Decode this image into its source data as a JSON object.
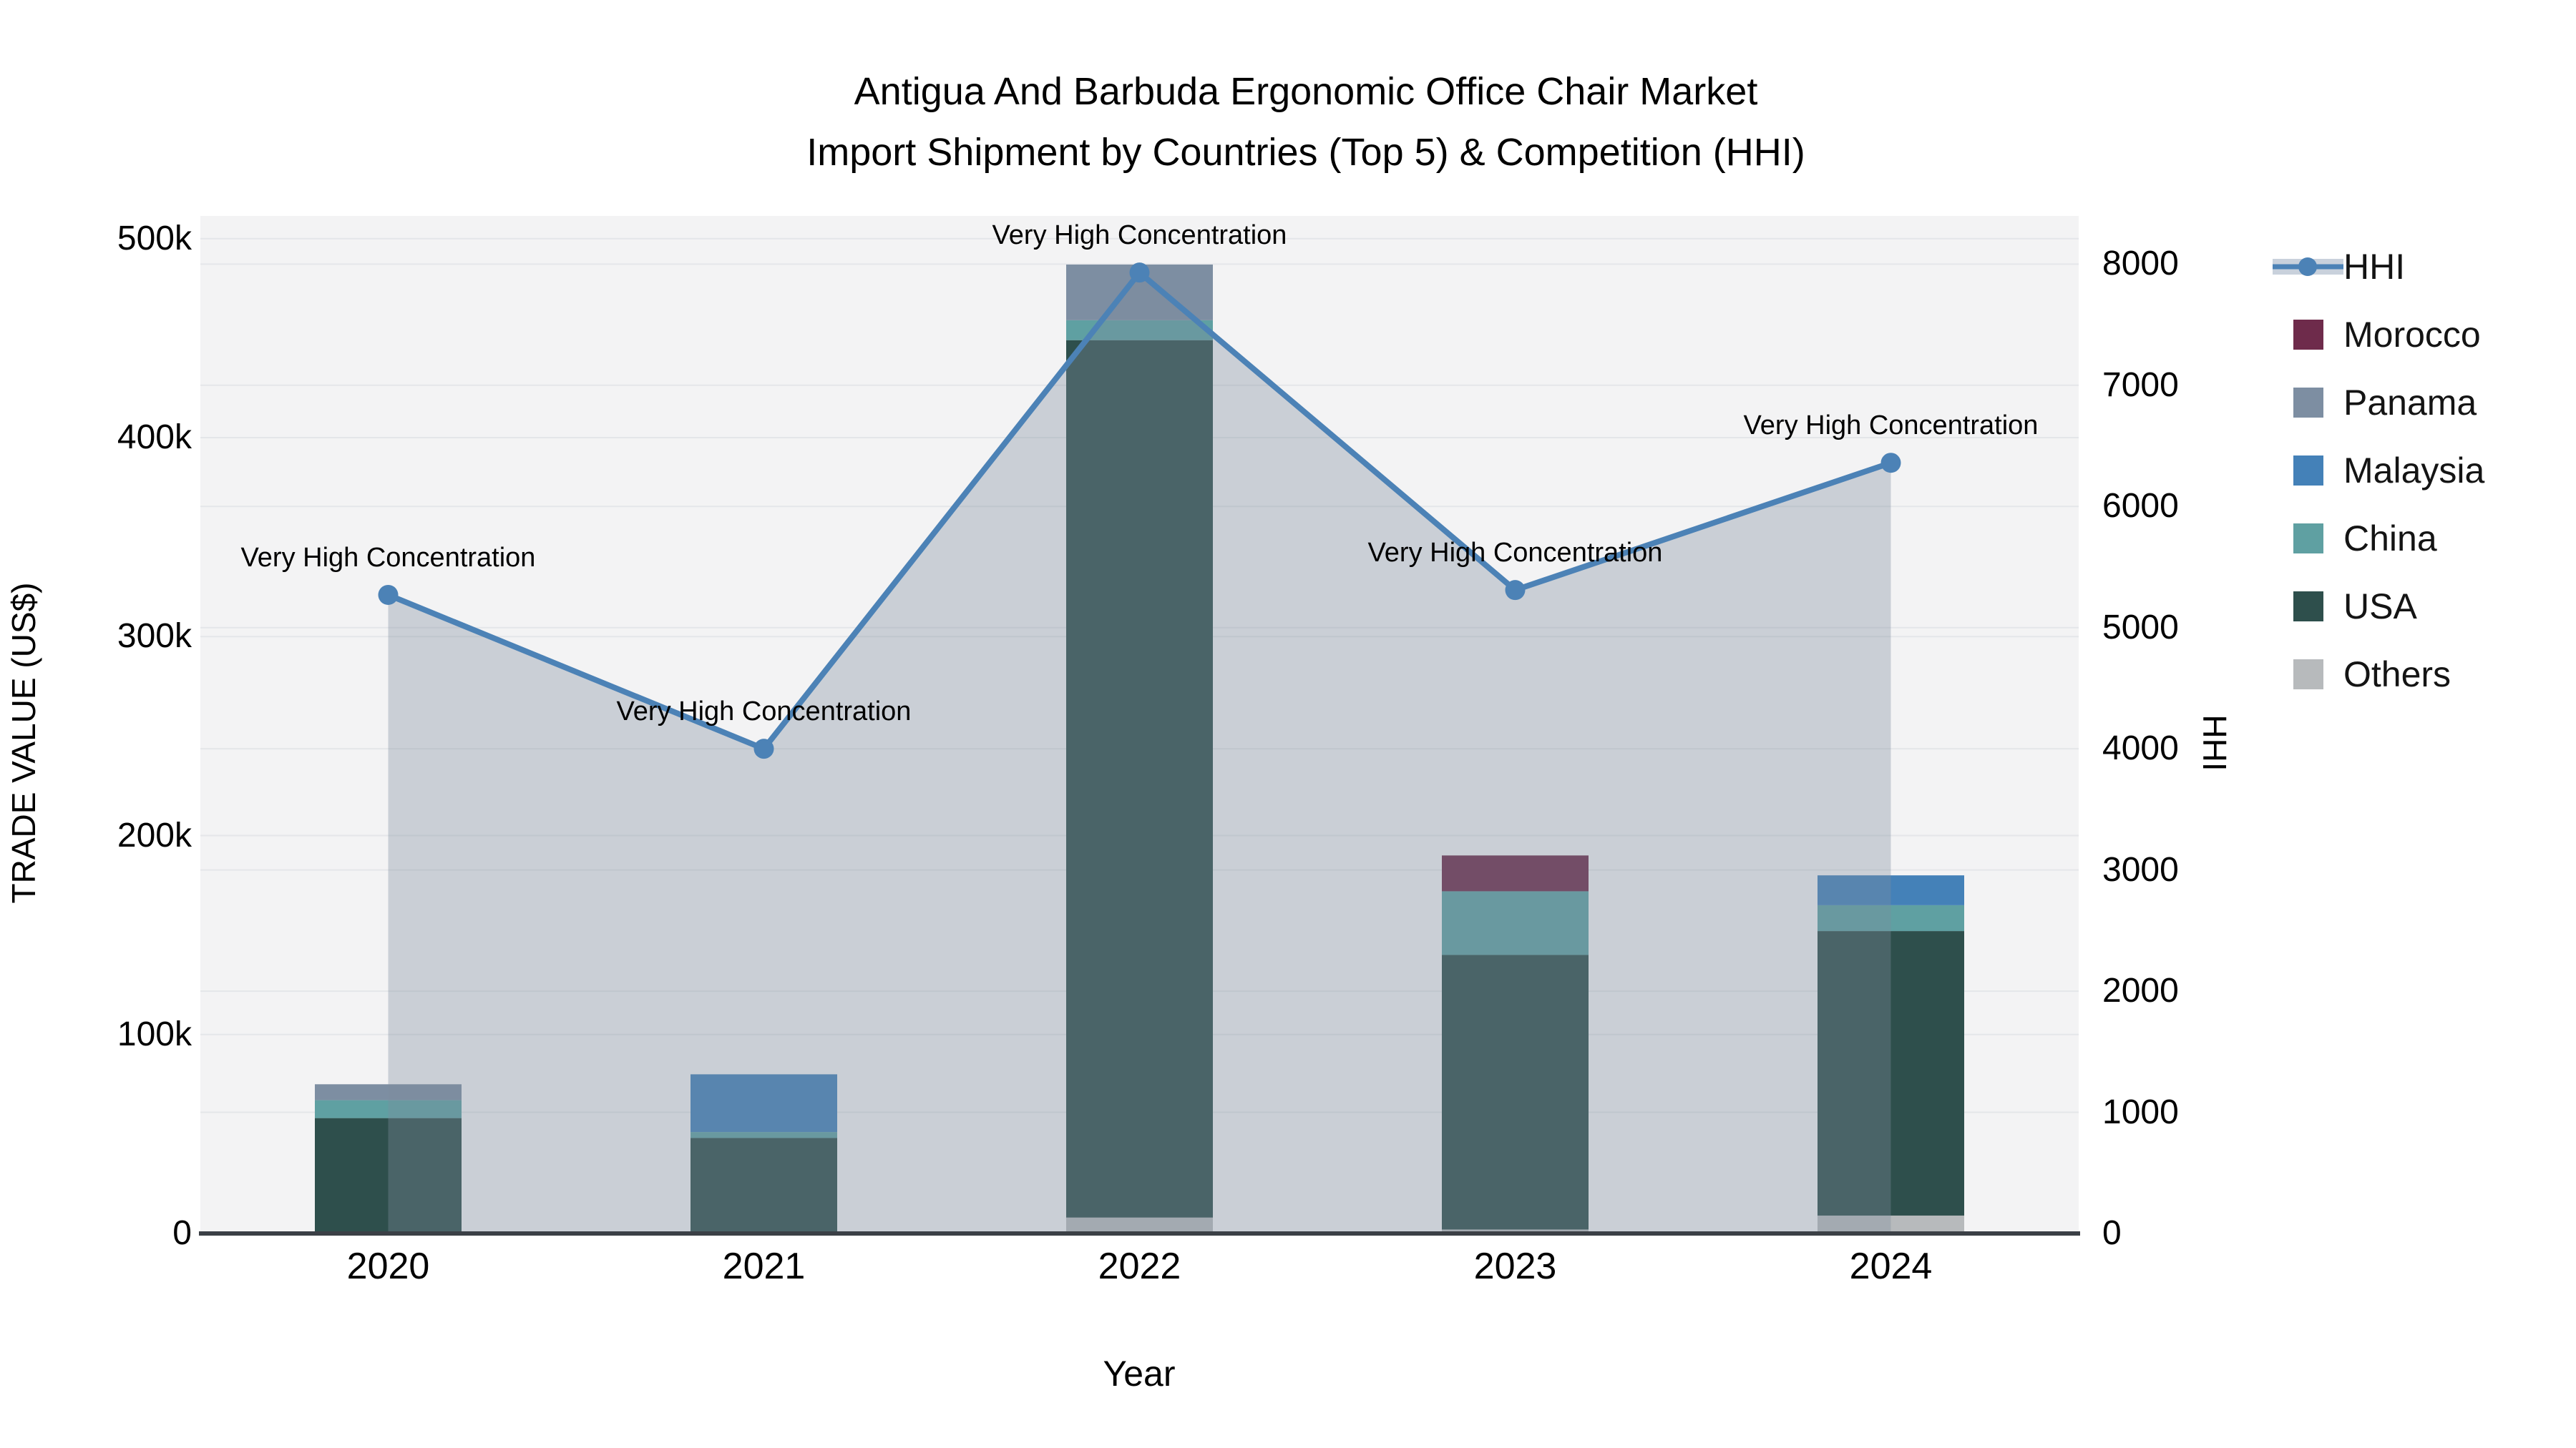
{
  "title": {
    "line1": "Antigua And Barbuda Ergonomic Office Chair Market",
    "line2": "Import Shipment by Countries (Top 5) & Competition (HHI)"
  },
  "colors": {
    "plot_background": "#f3f3f4",
    "gridline": "#e4e6e9",
    "axis_line": "#3b4046",
    "hhi_line": "#4c82b6",
    "hhi_area_fill": "rgba(126,139,158,0.35)",
    "legend_hhi_band": "#c9d1dc"
  },
  "legend": {
    "items": [
      {
        "label": "HHI",
        "type": "line",
        "color": "#4c82b6"
      },
      {
        "label": "Morocco",
        "type": "swatch",
        "color": "#6e2b4b"
      },
      {
        "label": "Panama",
        "type": "swatch",
        "color": "#7d8ea2"
      },
      {
        "label": "Malaysia",
        "type": "swatch",
        "color": "#4481b8"
      },
      {
        "label": "China",
        "type": "swatch",
        "color": "#5fa0a2"
      },
      {
        "label": "USA",
        "type": "swatch",
        "color": "#2e4f4c"
      },
      {
        "label": "Others",
        "type": "swatch",
        "color": "#b7babc"
      }
    ]
  },
  "chart_data": {
    "type": "combo-stacked-bar-line",
    "title": "Antigua And Barbuda Ergonomic Office Chair Market Import Shipment by Countries (Top 5) & Competition (HHI)",
    "categories": [
      "2020",
      "2021",
      "2022",
      "2023",
      "2024"
    ],
    "xlabel": "Year",
    "left_axis": {
      "title": "TRADE VALUE (US$)",
      "tick_labels": [
        "0",
        "100k",
        "200k",
        "300k",
        "400k",
        "500k"
      ],
      "tick_values": [
        0,
        100000,
        200000,
        300000,
        400000,
        500000
      ],
      "ylim": [
        0,
        511500
      ],
      "grid": true
    },
    "right_axis": {
      "title": "HHI",
      "tick_labels": [
        "0",
        "1000",
        "2000",
        "3000",
        "4000",
        "5000",
        "6000",
        "7000",
        "8000"
      ],
      "tick_values": [
        0,
        1000,
        2000,
        3000,
        4000,
        5000,
        6000,
        7000,
        8000
      ],
      "ylim": [
        0,
        8400
      ],
      "grid": true
    },
    "bar_series_stack_order_bottom_to_top": [
      {
        "name": "Others",
        "color": "#b7babc",
        "values": [
          1000,
          1000,
          8000,
          2000,
          9000
        ]
      },
      {
        "name": "USA",
        "color": "#2e4f4c",
        "values": [
          57000,
          47000,
          441000,
          138000,
          143000
        ]
      },
      {
        "name": "China",
        "color": "#5fa0a2",
        "values": [
          9000,
          3000,
          10000,
          32000,
          13000
        ]
      },
      {
        "name": "Malaysia",
        "color": "#4481b8",
        "values": [
          0,
          29000,
          0,
          0,
          15000
        ]
      },
      {
        "name": "Panama",
        "color": "#7d8ea2",
        "values": [
          8000,
          0,
          28000,
          0,
          0
        ]
      },
      {
        "name": "Morocco",
        "color": "#6e2b4b",
        "values": [
          0,
          0,
          0,
          18000,
          0
        ]
      }
    ],
    "bar_totals": [
      75000,
      80000,
      487000,
      190000,
      180000
    ],
    "line_series": {
      "name": "HHI",
      "axis": "right",
      "color": "#4c82b6",
      "area_fill": "rgba(126,139,158,0.35)",
      "values": [
        5270,
        4000,
        7930,
        5310,
        6360
      ]
    },
    "point_annotations": [
      "Very High Concentration",
      "Very High Concentration",
      "Very High Concentration",
      "Very High Concentration",
      "Very High Concentration"
    ],
    "legend_position": "right"
  }
}
